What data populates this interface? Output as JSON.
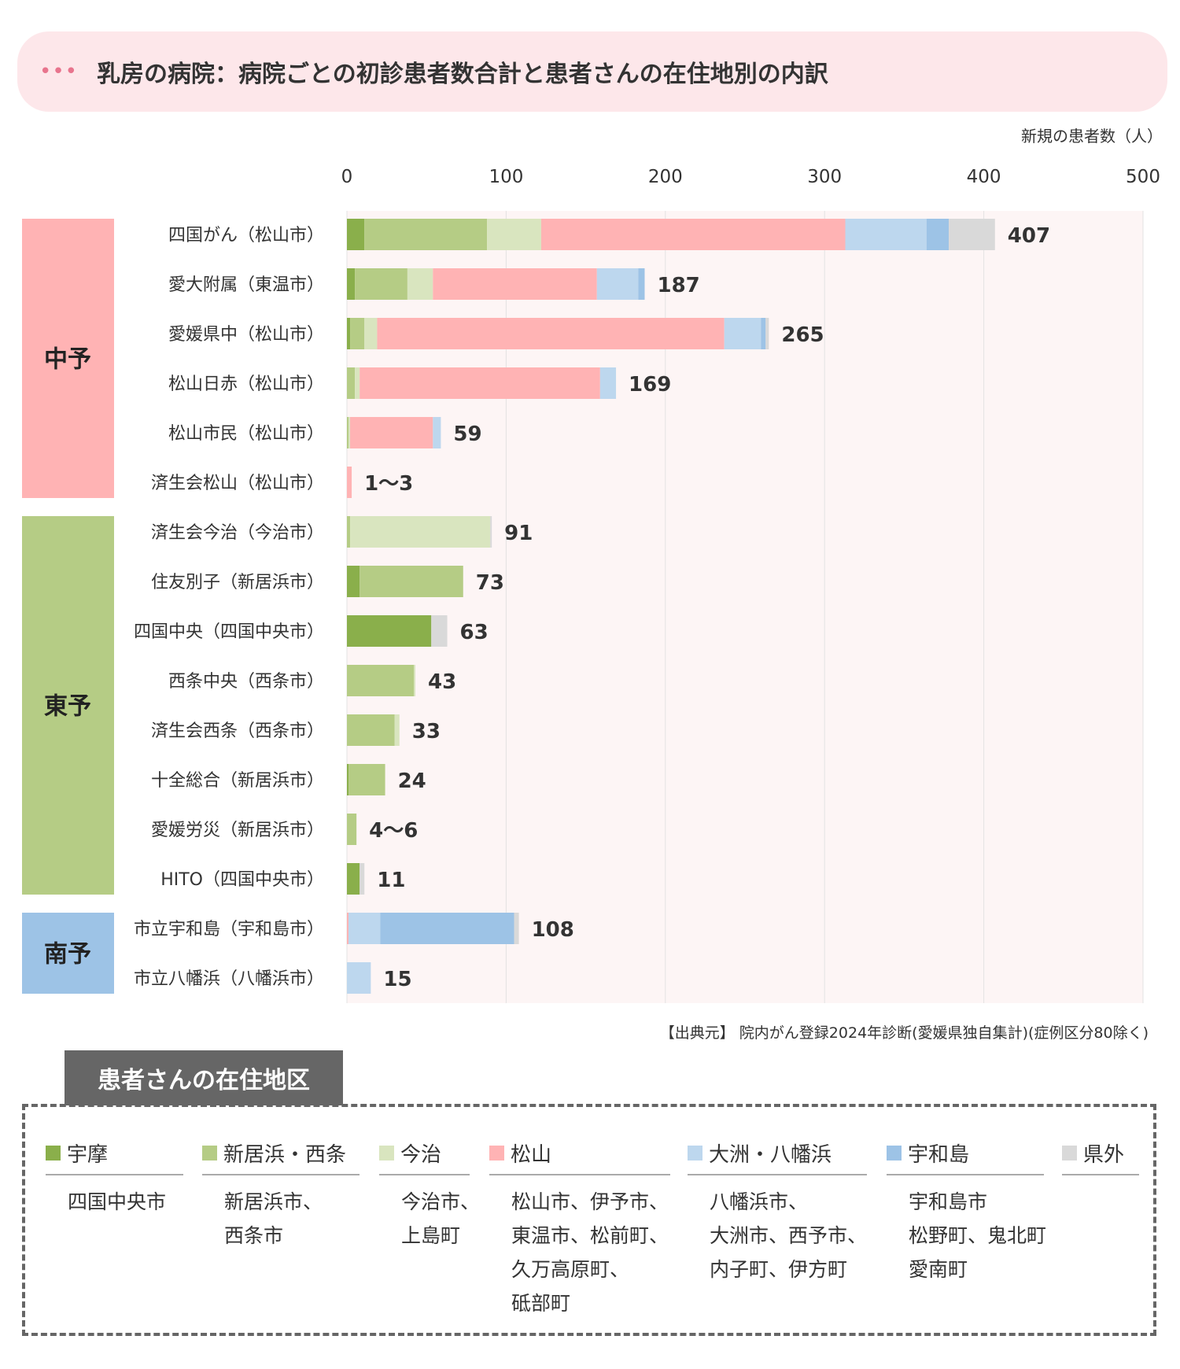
{
  "header": {
    "title": "乳房の病院：病院ごとの初診患者数合計と患者さんの在住地別の内訳"
  },
  "chart_data": {
    "type": "bar",
    "orientation": "horizontal",
    "stacked": true,
    "unit_label": "新規の患者数（人）",
    "xlim": [
      0,
      500
    ],
    "x_ticks": [
      0,
      100,
      200,
      300,
      400,
      500
    ],
    "grid": true,
    "legend_position": "bottom",
    "groups": [
      {
        "name": "中予",
        "color": "#ffb3b4",
        "hospitals": [
          0,
          1,
          2,
          3,
          4,
          5
        ]
      },
      {
        "name": "東予",
        "color": "#b5cc85",
        "hospitals": [
          6,
          7,
          8,
          9,
          10,
          11,
          12,
          13
        ]
      },
      {
        "name": "南予",
        "color": "#9dc3e6",
        "hospitals": [
          14,
          15
        ]
      }
    ],
    "series": [
      {
        "name": "宇摩",
        "color": "#8aaf4b",
        "areas": [
          "四国中央市"
        ]
      },
      {
        "name": "新居浜・西条",
        "color": "#b5cc85",
        "areas": [
          "新居浜市、",
          "西条市"
        ]
      },
      {
        "name": "今治",
        "color": "#d9e5bf",
        "areas": [
          "今治市、",
          "上島町"
        ]
      },
      {
        "name": "松山",
        "color": "#ffb3b4",
        "areas": [
          "松山市、伊予市、",
          "東温市、松前町、",
          "久万高原町、",
          "砥部町"
        ]
      },
      {
        "name": "大洲・八幡浜",
        "color": "#bdd7ee",
        "areas": [
          "八幡浜市、",
          "大洲市、西予市、",
          "内子町、伊方町"
        ]
      },
      {
        "name": "宇和島",
        "color": "#9dc3e6",
        "areas": [
          "宇和島市",
          "松野町、鬼北町",
          "愛南町"
        ]
      },
      {
        "name": "県外",
        "color": "#d9d9d9",
        "areas": []
      }
    ],
    "categories": [
      {
        "name": "四国がん（松山市）",
        "total_label": "407",
        "values": [
          11,
          77,
          34,
          191,
          51,
          14,
          29
        ]
      },
      {
        "name": "愛大附属（東温市）",
        "total_label": "187",
        "values": [
          5,
          33,
          16,
          103,
          26,
          4,
          0
        ]
      },
      {
        "name": "愛媛県中（松山市）",
        "total_label": "265",
        "values": [
          2,
          9,
          8,
          218,
          23,
          3,
          2
        ]
      },
      {
        "name": "松山日赤（松山市）",
        "total_label": "169",
        "values": [
          0,
          5,
          3,
          151,
          10,
          0,
          0
        ]
      },
      {
        "name": "松山市民（松山市）",
        "total_label": "59",
        "values": [
          0,
          1,
          1,
          52,
          5,
          0,
          0
        ]
      },
      {
        "name": "済生会松山（松山市）",
        "total_label": "1〜3",
        "values": [
          0,
          0,
          0,
          3,
          0,
          0,
          0
        ]
      },
      {
        "name": "済生会今治（今治市）",
        "total_label": "91",
        "values": [
          0,
          2,
          88,
          0,
          0,
          0,
          1
        ]
      },
      {
        "name": "住友別子（新居浜市）",
        "total_label": "73",
        "values": [
          8,
          65,
          0,
          0,
          0,
          0,
          0
        ]
      },
      {
        "name": "四国中央（四国中央市）",
        "total_label": "63",
        "values": [
          53,
          0,
          0,
          0,
          0,
          0,
          10
        ]
      },
      {
        "name": "西条中央（西条市）",
        "total_label": "43",
        "values": [
          0,
          42,
          1,
          0,
          0,
          0,
          0
        ]
      },
      {
        "name": "済生会西条（西条市）",
        "total_label": "33",
        "values": [
          0,
          30,
          3,
          0,
          0,
          0,
          0
        ]
      },
      {
        "name": "十全総合（新居浜市）",
        "total_label": "24",
        "values": [
          1,
          23,
          0,
          0,
          0,
          0,
          0
        ]
      },
      {
        "name": "愛媛労災（新居浜市）",
        "total_label": "4〜6",
        "values": [
          0,
          6,
          0,
          0,
          0,
          0,
          0
        ]
      },
      {
        "name": "HITO（四国中央市）",
        "total_label": "11",
        "values": [
          8,
          0,
          0,
          0,
          0,
          0,
          3
        ]
      },
      {
        "name": "市立宇和島（宇和島市）",
        "total_label": "108",
        "values": [
          0,
          0,
          0,
          1,
          20,
          84,
          3
        ]
      },
      {
        "name": "市立八幡浜（八幡浜市）",
        "total_label": "15",
        "values": [
          0,
          0,
          0,
          0,
          15,
          0,
          0
        ]
      }
    ]
  },
  "source": "【出典元】 院内がん登録2024年診断(愛媛県独自集計)(症例区分80除く)",
  "legend": {
    "title": "患者さんの在住地区"
  }
}
